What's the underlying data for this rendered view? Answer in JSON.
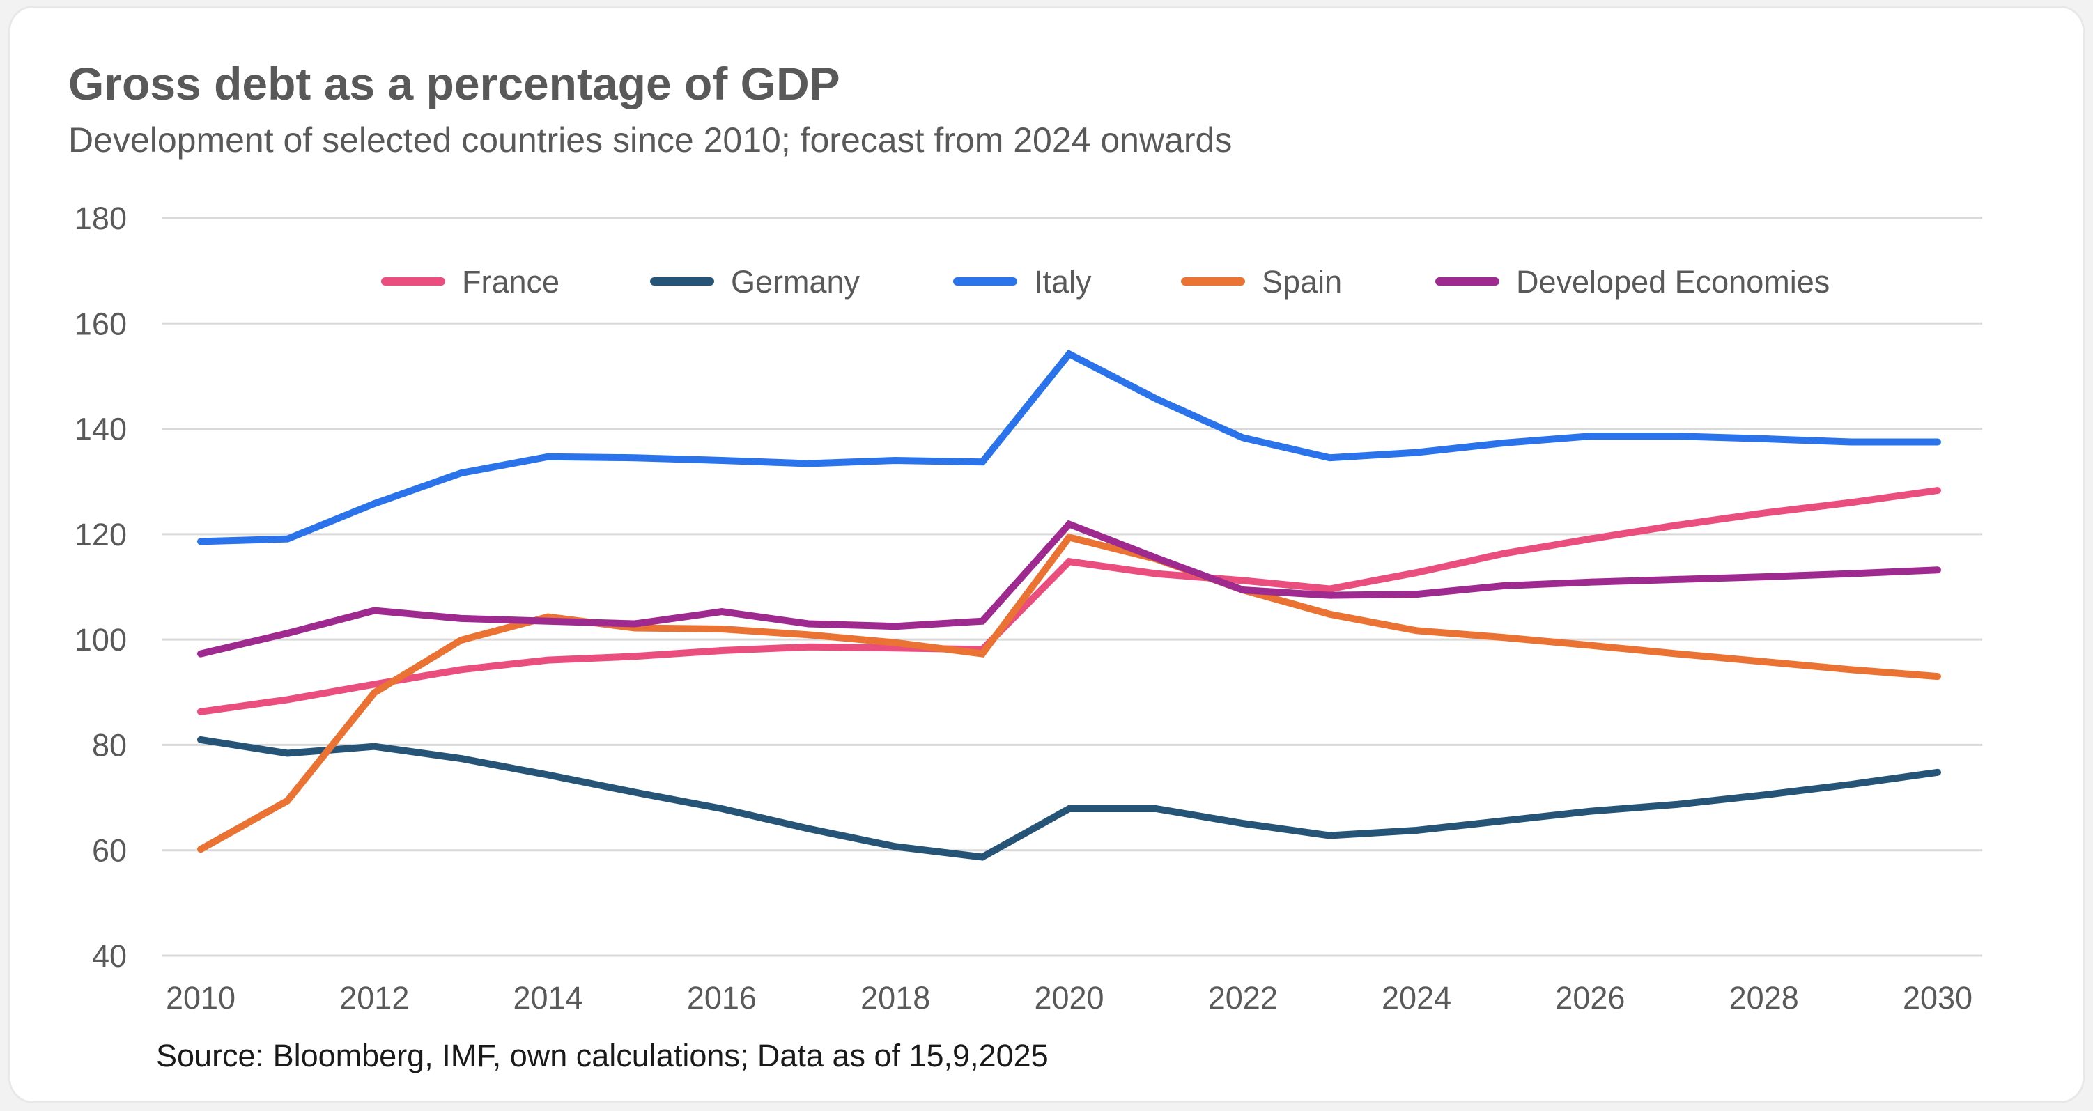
{
  "chart_data": {
    "type": "line",
    "title": "Gross debt as a percentage of GDP",
    "subtitle": "Development of selected countries since 2010; forecast from 2024 onwards",
    "source": "Source: Bloomberg, IMF, own calculations; Data as of 15,9,2025",
    "xlabel": "",
    "ylabel": "",
    "ylim": [
      40,
      180
    ],
    "xlim": [
      2010,
      2030
    ],
    "yticks": [
      40,
      60,
      80,
      100,
      120,
      140,
      160,
      180
    ],
    "xticks": [
      2010,
      2012,
      2014,
      2016,
      2018,
      2020,
      2022,
      2024,
      2026,
      2028,
      2030
    ],
    "grid": "horizontal",
    "legend_position": "top",
    "x": [
      2010,
      2011,
      2012,
      2013,
      2014,
      2015,
      2016,
      2017,
      2018,
      2019,
      2020,
      2021,
      2022,
      2023,
      2024,
      2025,
      2026,
      2027,
      2028,
      2029,
      2030
    ],
    "series": [
      {
        "name": "France",
        "color": "#e94e7e",
        "values": [
          86.3,
          88.6,
          91.5,
          94.3,
          96.1,
          96.8,
          97.9,
          98.6,
          98.4,
          98.1,
          114.8,
          112.5,
          111.2,
          109.6,
          112.7,
          116.3,
          119.1,
          121.7,
          124.0,
          126.0,
          128.3
        ]
      },
      {
        "name": "Germany",
        "color": "#255476",
        "values": [
          81.0,
          78.4,
          79.7,
          77.4,
          74.3,
          71.0,
          67.9,
          64.1,
          60.7,
          58.7,
          67.9,
          67.9,
          65.1,
          62.8,
          63.8,
          65.6,
          67.4,
          68.7,
          70.5,
          72.5,
          74.8
        ]
      },
      {
        "name": "Italy",
        "color": "#2a73ea",
        "values": [
          118.6,
          119.1,
          125.8,
          131.6,
          134.7,
          134.5,
          134.0,
          133.4,
          134.0,
          133.7,
          154.2,
          145.7,
          138.3,
          134.5,
          135.5,
          137.3,
          138.6,
          138.6,
          138.1,
          137.5,
          137.5
        ]
      },
      {
        "name": "Spain",
        "color": "#ea7233",
        "values": [
          60.2,
          69.4,
          89.9,
          99.9,
          104.3,
          102.2,
          102.0,
          100.9,
          99.4,
          97.3,
          119.4,
          115.3,
          109.4,
          104.8,
          101.7,
          100.4,
          98.9,
          97.3,
          95.8,
          94.3,
          93.0
        ]
      },
      {
        "name": "Developed Economies",
        "color": "#9e2a8f",
        "values": [
          97.3,
          101.2,
          105.5,
          104.0,
          103.5,
          103.0,
          105.3,
          103.0,
          102.5,
          103.5,
          121.9,
          115.5,
          109.4,
          108.4,
          108.6,
          110.2,
          110.9,
          111.4,
          111.9,
          112.5,
          113.2
        ]
      }
    ]
  }
}
